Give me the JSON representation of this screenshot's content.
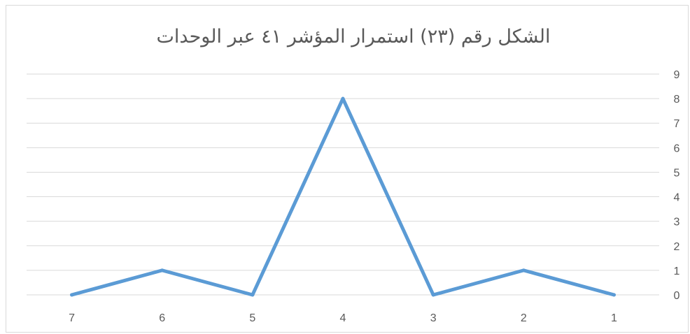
{
  "chart_data": {
    "type": "line",
    "title": "الشكل رقم (٢٣) استمرار المؤشر ٤١ عبر الوحدات",
    "categories": [
      "1",
      "2",
      "3",
      "4",
      "5",
      "6",
      "7"
    ],
    "x_axis_reversed": true,
    "y_axis_position": "right",
    "series": [
      {
        "values": [
          0,
          1,
          0,
          8,
          0,
          1,
          0
        ],
        "color": "#5b9bd5"
      }
    ],
    "yticks": [
      "0",
      "1",
      "2",
      "3",
      "4",
      "5",
      "6",
      "7",
      "8",
      "9"
    ],
    "ylim": [
      0,
      9
    ],
    "grid": true,
    "legend": "none"
  }
}
